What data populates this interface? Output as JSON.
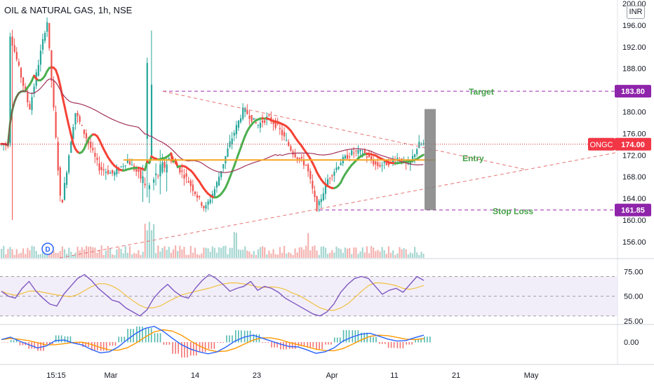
{
  "header": {
    "title": "OIL & NATURAL GAS, 1h, NSE",
    "currency": "INR"
  },
  "annotations": {
    "target_label": "Target",
    "entry_label": "Entry",
    "stop_label": "Stop Loss",
    "target_price": "183.80",
    "stop_price": "161.85",
    "last_price": "174.00",
    "ticker": "ONGC",
    "dividend_marker": "D"
  },
  "colors": {
    "up": "#26a69a",
    "down": "#ef5350",
    "ma_up": "#4caf50",
    "ma_down": "#f44336",
    "ma200": "#a1325a",
    "entry_line": "#f5a623",
    "guide": "#9c27b0",
    "rsi": "#7e57c2",
    "rsi_ma": "#f0c040",
    "macd": "#2962ff",
    "signal": "#ff9800",
    "label_bg": "#8e24aa",
    "last_bg": "#f23645"
  },
  "chart_data": [
    {
      "type": "candlestick",
      "yaxis_ticks": [
        "156.00",
        "160.00",
        "164.00",
        "168.00",
        "172.00",
        "176.00",
        "180.00",
        "184.00",
        "188.00",
        "192.00",
        "196.00",
        "200.00"
      ],
      "ylim": [
        153,
        200
      ],
      "xaxis_ticks": [
        "15:15",
        "Mar",
        "14",
        "23",
        "Apr",
        "11",
        "21",
        "May"
      ],
      "levels": {
        "target": 183.8,
        "entry": 171.1,
        "stop_loss": 161.85,
        "last": 174.0
      },
      "trend": [
        [
          15,
          195.5
        ],
        [
          45,
          180.5
        ],
        [
          70,
          197
        ],
        [
          90,
          162
        ],
        [
          110,
          180
        ],
        [
          145,
          169.5
        ],
        [
          165,
          168.5
        ],
        [
          185,
          171
        ],
        [
          215,
          166
        ],
        [
          245,
          171.5
        ],
        [
          270,
          167.5
        ],
        [
          295,
          162
        ],
        [
          310,
          166
        ],
        [
          330,
          174
        ],
        [
          350,
          180.5
        ],
        [
          370,
          177.5
        ],
        [
          385,
          179
        ],
        [
          400,
          177
        ],
        [
          420,
          172.5
        ],
        [
          440,
          170
        ],
        [
          455,
          162
        ],
        [
          470,
          167.5
        ],
        [
          490,
          171
        ],
        [
          505,
          172.5
        ],
        [
          520,
          172.5
        ],
        [
          540,
          170
        ],
        [
          555,
          170.5
        ],
        [
          570,
          171.5
        ],
        [
          585,
          170
        ],
        [
          600,
          174
        ]
      ]
    },
    {
      "type": "line",
      "name": "RSI",
      "yaxis_ticks": [
        "25.00",
        "50.00",
        "75.00"
      ],
      "ylim": [
        22,
        86
      ],
      "bands": [
        30,
        70
      ],
      "values": [
        55,
        50,
        48,
        58,
        65,
        55,
        48,
        42,
        40,
        52,
        60,
        68,
        72,
        66,
        58,
        52,
        46,
        44,
        38,
        34,
        30,
        36,
        48,
        56,
        62,
        55,
        50,
        48,
        58,
        66,
        72,
        68,
        62,
        55,
        58,
        60,
        65,
        56,
        60,
        58,
        54,
        48,
        44,
        40,
        36,
        32,
        30,
        34,
        42,
        54,
        62,
        68,
        70,
        68,
        60,
        52,
        56,
        58,
        54,
        62,
        70,
        66
      ]
    },
    {
      "type": "line",
      "name": "MACD",
      "yaxis_ticks": [
        "0.00"
      ],
      "zero": 0,
      "values": [
        0.5,
        1.0,
        0.2,
        -0.5,
        -1.2,
        -0.8,
        0.3,
        0.4,
        -0.2,
        -0.6,
        -1.5,
        -2.2,
        -2.0,
        -1.0,
        0.5,
        1.8,
        2.8,
        3.2,
        2.2,
        0.8,
        -0.5,
        -1.4,
        -2.0,
        -2.4,
        -2.0,
        -1.0,
        0.2,
        1.0,
        1.4,
        0.8,
        0.2,
        -0.4,
        -0.9,
        -1.0,
        -1.6,
        -2.3,
        -2.0,
        -1.2,
        0.2,
        1.0,
        1.6,
        1.8,
        1.2,
        0.6,
        0.2,
        0.3,
        0.9,
        1.4
      ]
    }
  ]
}
